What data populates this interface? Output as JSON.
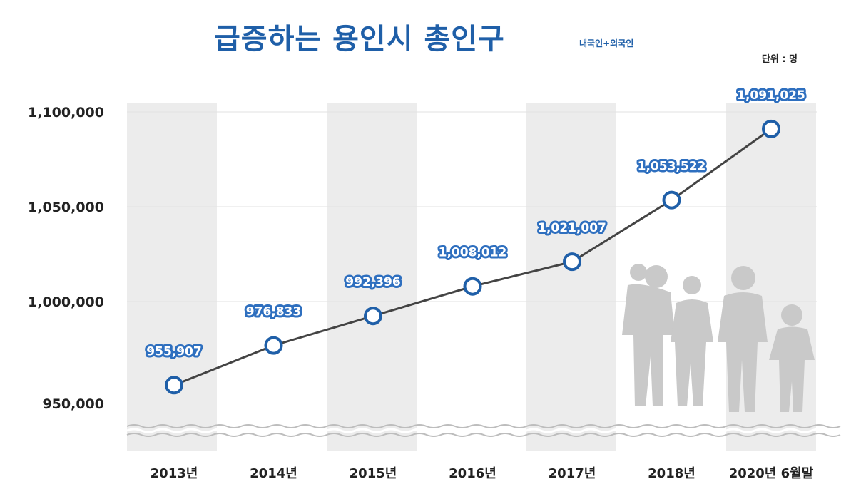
{
  "header": {
    "title": "급증하는 용인시 총인구",
    "subtitle": "내국인+외국인",
    "unit": "단위 : 명"
  },
  "chart_data": {
    "type": "line",
    "title": "급증하는 용인시 총인구",
    "subtitle": "내국인+외국인",
    "categories": [
      "2013년",
      "2014년",
      "2015년",
      "2016년",
      "2017년",
      "2018년",
      "2020년 6월말"
    ],
    "series": [
      {
        "values": [
          955907,
          976833,
          992396,
          1008012,
          1021007,
          1053522,
          1091025
        ],
        "labels": [
          "955,907",
          "976,833",
          "992,396",
          "1,008,012",
          "1,021,007",
          "1,053,522",
          "1,091,025"
        ]
      }
    ],
    "yticks": [
      950000,
      1000000,
      1050000,
      1100000
    ],
    "ytick_labels": [
      "950,000",
      "1,000,000",
      "1,050,000",
      "1,100,000"
    ],
    "ylim": [
      940000,
      1100000
    ],
    "axis_break": "bottom",
    "grid": false,
    "colors": {
      "line": "#444444",
      "marker_edge": "#1f5fa8",
      "label_bg": "#2e6fbf",
      "band": "#ececec",
      "title": "#1f5fa8"
    }
  }
}
